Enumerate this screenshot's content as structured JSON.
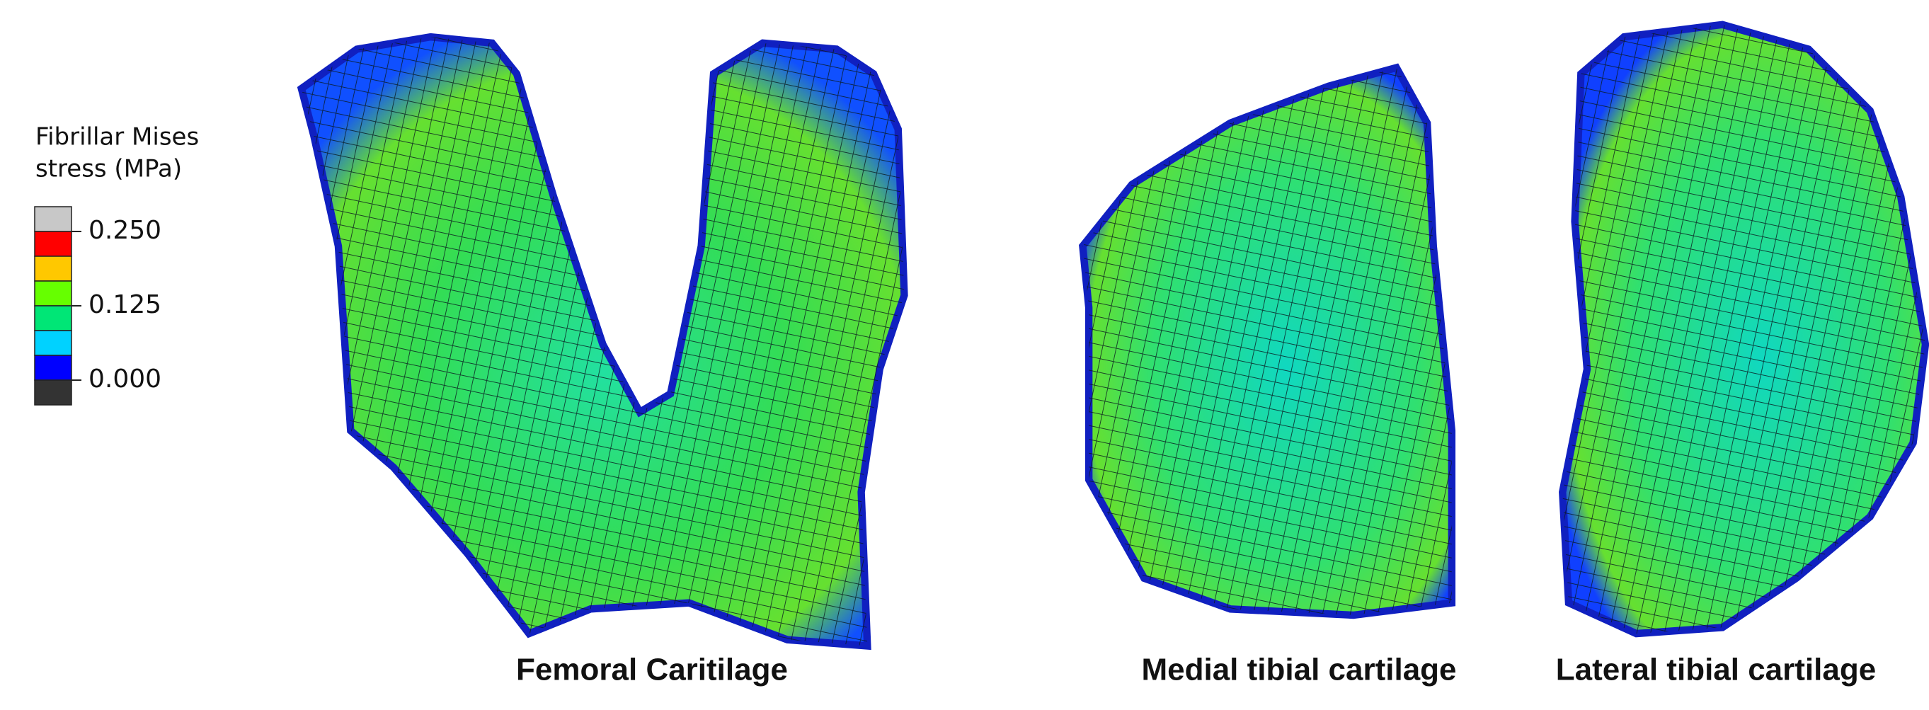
{
  "legend": {
    "title": [
      "Fibrillar Mises",
      "stress (MPa)"
    ],
    "colors": [
      "#c8c8c8",
      "#ff0000",
      "#ffc800",
      "#66ff00",
      "#00e676",
      "#00d2ff",
      "#0000ff",
      "#333333"
    ],
    "range": [
      0,
      0.25
    ],
    "ticks": [
      {
        "value": 0.25,
        "label": "0.250"
      },
      {
        "value": 0.125,
        "label": "0.125"
      },
      {
        "value": 0,
        "label": "0.000"
      }
    ]
  },
  "captions": [
    "Femoral Caritilage",
    "Medial tibial cartilage",
    "Lateral tibial cartilage"
  ]
}
